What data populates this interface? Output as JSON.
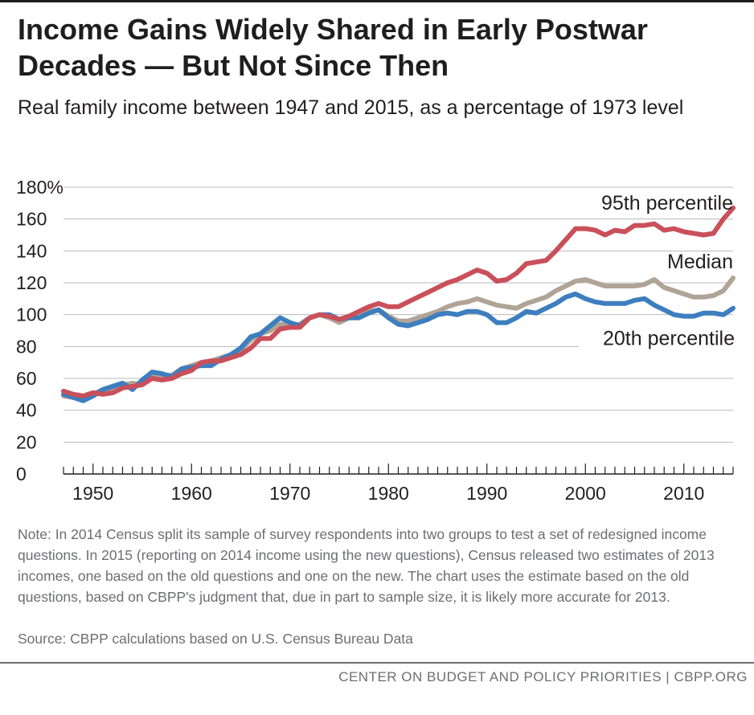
{
  "header": {
    "title": "Income Gains Widely Shared in Early Postwar Decades — But Not Since Then",
    "subtitle": "Real family income between 1947 and 2015, as a percentage of 1973 level"
  },
  "chart_data": {
    "type": "line",
    "title": "Income Gains Widely Shared in Early Postwar Decades — But Not Since Then",
    "subtitle": "Real family income between 1947 and 2015, as a percentage of 1973 level",
    "xlabel": "",
    "ylabel": "",
    "xlim": [
      1947,
      2015
    ],
    "ylim": [
      0,
      180
    ],
    "yticks": [
      0,
      20,
      40,
      60,
      80,
      100,
      120,
      140,
      160,
      180
    ],
    "ytick_labels": [
      "0",
      "20",
      "40",
      "60",
      "80",
      "100",
      "120",
      "140",
      "160",
      "180%"
    ],
    "xticks": [
      1950,
      1960,
      1970,
      1980,
      1990,
      2000,
      2010
    ],
    "xtick_labels": [
      "1950",
      "1960",
      "1970",
      "1980",
      "1990",
      "2000",
      "2010"
    ],
    "grid": true,
    "x": [
      1947,
      1948,
      1949,
      1950,
      1951,
      1952,
      1953,
      1954,
      1955,
      1956,
      1957,
      1958,
      1959,
      1960,
      1961,
      1962,
      1963,
      1964,
      1965,
      1966,
      1967,
      1968,
      1969,
      1970,
      1971,
      1972,
      1973,
      1974,
      1975,
      1976,
      1977,
      1978,
      1979,
      1980,
      1981,
      1982,
      1983,
      1984,
      1985,
      1986,
      1987,
      1988,
      1989,
      1990,
      1991,
      1992,
      1993,
      1994,
      1995,
      1996,
      1997,
      1998,
      1999,
      2000,
      2001,
      2002,
      2003,
      2004,
      2005,
      2006,
      2007,
      2008,
      2009,
      2010,
      2011,
      2012,
      2013,
      2014,
      2015
    ],
    "series": [
      {
        "name": "95th percentile",
        "color": "#c9505a",
        "values": [
          52,
          50,
          49,
          51,
          50,
          51,
          54,
          55,
          56,
          60,
          59,
          60,
          63,
          65,
          70,
          71,
          71,
          73,
          75,
          79,
          85,
          85,
          91,
          92,
          92,
          98,
          100,
          99,
          97,
          99,
          102,
          105,
          107,
          105,
          105,
          108,
          111,
          114,
          117,
          120,
          122,
          125,
          128,
          126,
          121,
          122,
          126,
          132,
          133,
          134,
          140,
          147,
          154,
          154,
          153,
          150,
          153,
          152,
          156,
          156,
          157,
          153,
          154,
          152,
          151,
          150,
          151,
          160,
          167
        ]
      },
      {
        "name": "Median",
        "color": "#b0a497",
        "values": [
          49,
          48,
          47,
          50,
          53,
          54,
          56,
          57,
          56,
          62,
          62,
          62,
          66,
          68,
          70,
          71,
          73,
          75,
          78,
          84,
          88,
          90,
          94,
          93,
          94,
          98,
          100,
          98,
          95,
          98,
          99,
          102,
          103,
          99,
          96,
          96,
          98,
          100,
          102,
          105,
          107,
          108,
          110,
          108,
          106,
          105,
          104,
          107,
          109,
          111,
          115,
          118,
          121,
          122,
          120,
          118,
          118,
          118,
          118,
          119,
          122,
          117,
          115,
          113,
          111,
          111,
          112,
          115,
          123
        ]
      },
      {
        "name": "20th percentile",
        "color": "#3d7ebf",
        "values": [
          50,
          48,
          46,
          49,
          53,
          55,
          57,
          53,
          59,
          64,
          63,
          61,
          66,
          67,
          68,
          68,
          72,
          75,
          79,
          86,
          88,
          93,
          98,
          95,
          93,
          98,
          100,
          100,
          97,
          98,
          98,
          101,
          103,
          98,
          94,
          93,
          95,
          97,
          100,
          101,
          100,
          102,
          102,
          100,
          95,
          95,
          98,
          102,
          101,
          104,
          107,
          111,
          113,
          110,
          108,
          107,
          107,
          107,
          109,
          110,
          106,
          103,
          100,
          99,
          99,
          101,
          101,
          100,
          104
        ]
      }
    ]
  },
  "notes": {
    "note": "Note: In 2014 Census split its sample of survey respondents into two groups to test a set of redesigned income questions.  In 2015 (reporting on 2014 income using the new questions), Census released two estimates of 2013 incomes, one based on the old questions and one on the new.  The chart uses the estimate based on the old questions, based on CBPP's judgment that, due in part to sample size, it is likely more accurate for 2013.",
    "source": "Source: CBPP calculations based on U.S. Census Bureau Data"
  },
  "footer": {
    "credit": "CENTER ON BUDGET AND POLICY PRIORITIES | CBPP.ORG"
  }
}
